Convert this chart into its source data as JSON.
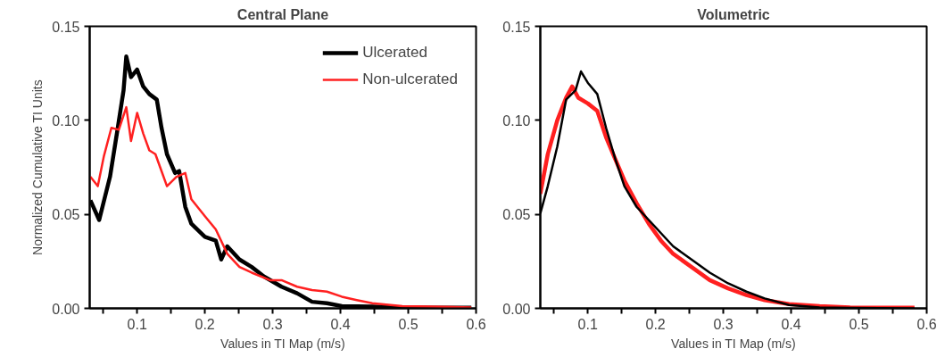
{
  "chart_data": [
    {
      "type": "line",
      "title": "Central Plane",
      "xlabel": "Values in TI Map (m/s)",
      "ylabel": "Normalized Cumulative TI Units",
      "xlim": [
        0.03,
        0.6
      ],
      "ylim": [
        0,
        0.15
      ],
      "xticks": [
        {
          "value": 0.05,
          "label": null
        },
        {
          "value": 0.1,
          "label": "0.1"
        },
        {
          "value": 0.15,
          "label": null
        },
        {
          "value": 0.2,
          "label": "0.2"
        },
        {
          "value": 0.25,
          "label": null
        },
        {
          "value": 0.3,
          "label": "0.3"
        },
        {
          "value": 0.35,
          "label": null
        },
        {
          "value": 0.4,
          "label": "0.4"
        },
        {
          "value": 0.45,
          "label": null
        },
        {
          "value": 0.5,
          "label": "0.5"
        },
        {
          "value": 0.55,
          "label": null
        },
        {
          "value": 0.6,
          "label": "0.6"
        }
      ],
      "yticks": [
        {
          "value": 0,
          "label": "0.00"
        },
        {
          "value": 0.05,
          "label": "0.05"
        },
        {
          "value": 0.1,
          "label": "0.10"
        },
        {
          "value": 0.15,
          "label": "0.15"
        }
      ],
      "grid": false,
      "legend": "top right",
      "line_style": "solid",
      "series": [
        {
          "name": "Ulcerated",
          "color": "#000000",
          "x": [
            0.031,
            0.044,
            0.06,
            0.071,
            0.08,
            0.084,
            0.091,
            0.1,
            0.109,
            0.118,
            0.129,
            0.136,
            0.144,
            0.156,
            0.162,
            0.171,
            0.18,
            0.2,
            0.216,
            0.224,
            0.233,
            0.251,
            0.269,
            0.287,
            0.313,
            0.336,
            0.358,
            0.38,
            0.402,
            0.447,
            0.491,
            0.536,
            0.593
          ],
          "values": [
            0.0575,
            0.047,
            0.07,
            0.095,
            0.116,
            0.134,
            0.123,
            0.127,
            0.118,
            0.114,
            0.111,
            0.096,
            0.082,
            0.072,
            0.073,
            0.054,
            0.045,
            0.038,
            0.036,
            0.026,
            0.033,
            0.026,
            0.022,
            0.017,
            0.0115,
            0.008,
            0.0035,
            0.0027,
            0.0012,
            0.0009,
            0.0005,
            0.0004,
            0.0003
          ]
        },
        {
          "name": "Non-ulcerated",
          "color": "#ff2020",
          "x": [
            0.031,
            0.042,
            0.051,
            0.062,
            0.073,
            0.084,
            0.091,
            0.1,
            0.109,
            0.118,
            0.127,
            0.136,
            0.144,
            0.158,
            0.171,
            0.18,
            0.2,
            0.216,
            0.233,
            0.251,
            0.269,
            0.296,
            0.313,
            0.336,
            0.358,
            0.38,
            0.402,
            0.424,
            0.447,
            0.491,
            0.536,
            0.593
          ],
          "values": [
            0.07,
            0.065,
            0.081,
            0.096,
            0.095,
            0.107,
            0.089,
            0.104,
            0.093,
            0.084,
            0.082,
            0.073,
            0.065,
            0.07,
            0.072,
            0.058,
            0.049,
            0.042,
            0.029,
            0.022,
            0.019,
            0.015,
            0.015,
            0.0115,
            0.0097,
            0.0089,
            0.0062,
            0.0044,
            0.0027,
            0.0012,
            0.0009,
            0.0005
          ]
        }
      ]
    },
    {
      "type": "line",
      "title": "Volumetric",
      "xlabel": "Values in TI Map (m/s)",
      "xlim": [
        0.03,
        0.6
      ],
      "ylim": [
        0,
        0.15
      ],
      "xticks": [
        {
          "value": 0.05,
          "label": null
        },
        {
          "value": 0.1,
          "label": "0.1"
        },
        {
          "value": 0.15,
          "label": null
        },
        {
          "value": 0.2,
          "label": "0.2"
        },
        {
          "value": 0.25,
          "label": null
        },
        {
          "value": 0.3,
          "label": "0.3"
        },
        {
          "value": 0.35,
          "label": null
        },
        {
          "value": 0.4,
          "label": "0.4"
        },
        {
          "value": 0.45,
          "label": null
        },
        {
          "value": 0.5,
          "label": "0.5"
        },
        {
          "value": 0.55,
          "label": null
        },
        {
          "value": 0.6,
          "label": "0.6"
        }
      ],
      "yticks": [
        {
          "value": 0,
          "label": "0.00"
        },
        {
          "value": 0.05,
          "label": "0.05"
        },
        {
          "value": 0.1,
          "label": "0.10"
        },
        {
          "value": 0.15,
          "label": "0.15"
        }
      ],
      "grid": false,
      "line_style": "solid",
      "series": [
        {
          "color": "#ff2020",
          "x": [
            0.03,
            0.041,
            0.055,
            0.068,
            0.077,
            0.086,
            0.1,
            0.114,
            0.127,
            0.141,
            0.154,
            0.172,
            0.19,
            0.208,
            0.226,
            0.253,
            0.28,
            0.307,
            0.334,
            0.361,
            0.397,
            0.442,
            0.487,
            0.582
          ],
          "values": [
            0.061,
            0.082,
            0.1,
            0.112,
            0.118,
            0.112,
            0.109,
            0.105,
            0.091,
            0.079,
            0.068,
            0.056,
            0.045,
            0.036,
            0.029,
            0.022,
            0.015,
            0.0106,
            0.0071,
            0.0044,
            0.0023,
            0.0012,
            0.0005,
            0.0004
          ]
        },
        {
          "color": "#000000",
          "x": [
            0.03,
            0.041,
            0.055,
            0.068,
            0.082,
            0.09,
            0.1,
            0.114,
            0.127,
            0.141,
            0.154,
            0.172,
            0.19,
            0.208,
            0.226,
            0.253,
            0.28,
            0.307,
            0.334,
            0.361,
            0.397,
            0.442,
            0.487,
            0.582
          ],
          "values": [
            0.0505,
            0.065,
            0.086,
            0.111,
            0.116,
            0.126,
            0.12,
            0.114,
            0.096,
            0.079,
            0.065,
            0.054,
            0.047,
            0.04,
            0.033,
            0.026,
            0.019,
            0.0133,
            0.0089,
            0.0053,
            0.0018,
            0.0005,
            0.0002,
            0.0
          ]
        }
      ]
    }
  ]
}
